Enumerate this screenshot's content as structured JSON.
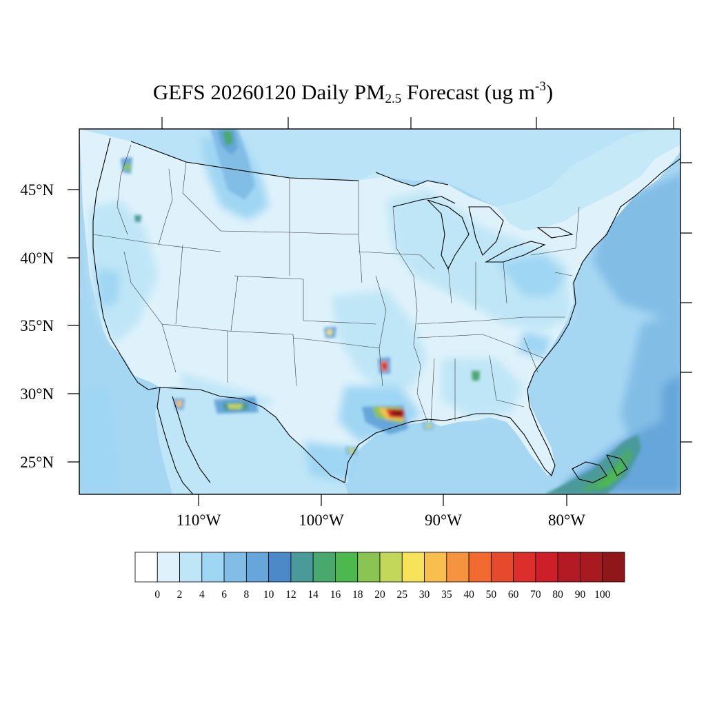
{
  "title": {
    "prefix": "GEFS 20260120 Daily PM",
    "subscript": "2.5",
    "middle": " Forecast (ug m",
    "superscript": "-3",
    "suffix": ")"
  },
  "map": {
    "lat_labels": [
      "45°N",
      "40°N",
      "35°N",
      "30°N",
      "25°N"
    ],
    "lon_labels": [
      "110°W",
      "100°W",
      "90°W",
      "80°W"
    ]
  },
  "colorbar": {
    "labels": [
      "0",
      "2",
      "4",
      "6",
      "8",
      "10",
      "12",
      "14",
      "16",
      "18",
      "20",
      "25",
      "30",
      "35",
      "40",
      "50",
      "60",
      "70",
      "80",
      "90",
      "100"
    ],
    "colors": [
      "#ffffff",
      "#dff2fb",
      "#bfe6f7",
      "#9fd6f3",
      "#82bde6",
      "#66a6da",
      "#4b89c8",
      "#4b9a9a",
      "#48a86e",
      "#4db84d",
      "#8ac452",
      "#c3d75a",
      "#f7e35a",
      "#f8bf4f",
      "#f69340",
      "#f26a2f",
      "#e64a2d",
      "#dc2e2a",
      "#cd1f2a",
      "#b41a24",
      "#a81a20",
      "#8f1719"
    ]
  },
  "legend_colors": {
    "land_low": "#dff2fb",
    "ocean": "#9fd6f3",
    "high": "#cd1f2a"
  }
}
